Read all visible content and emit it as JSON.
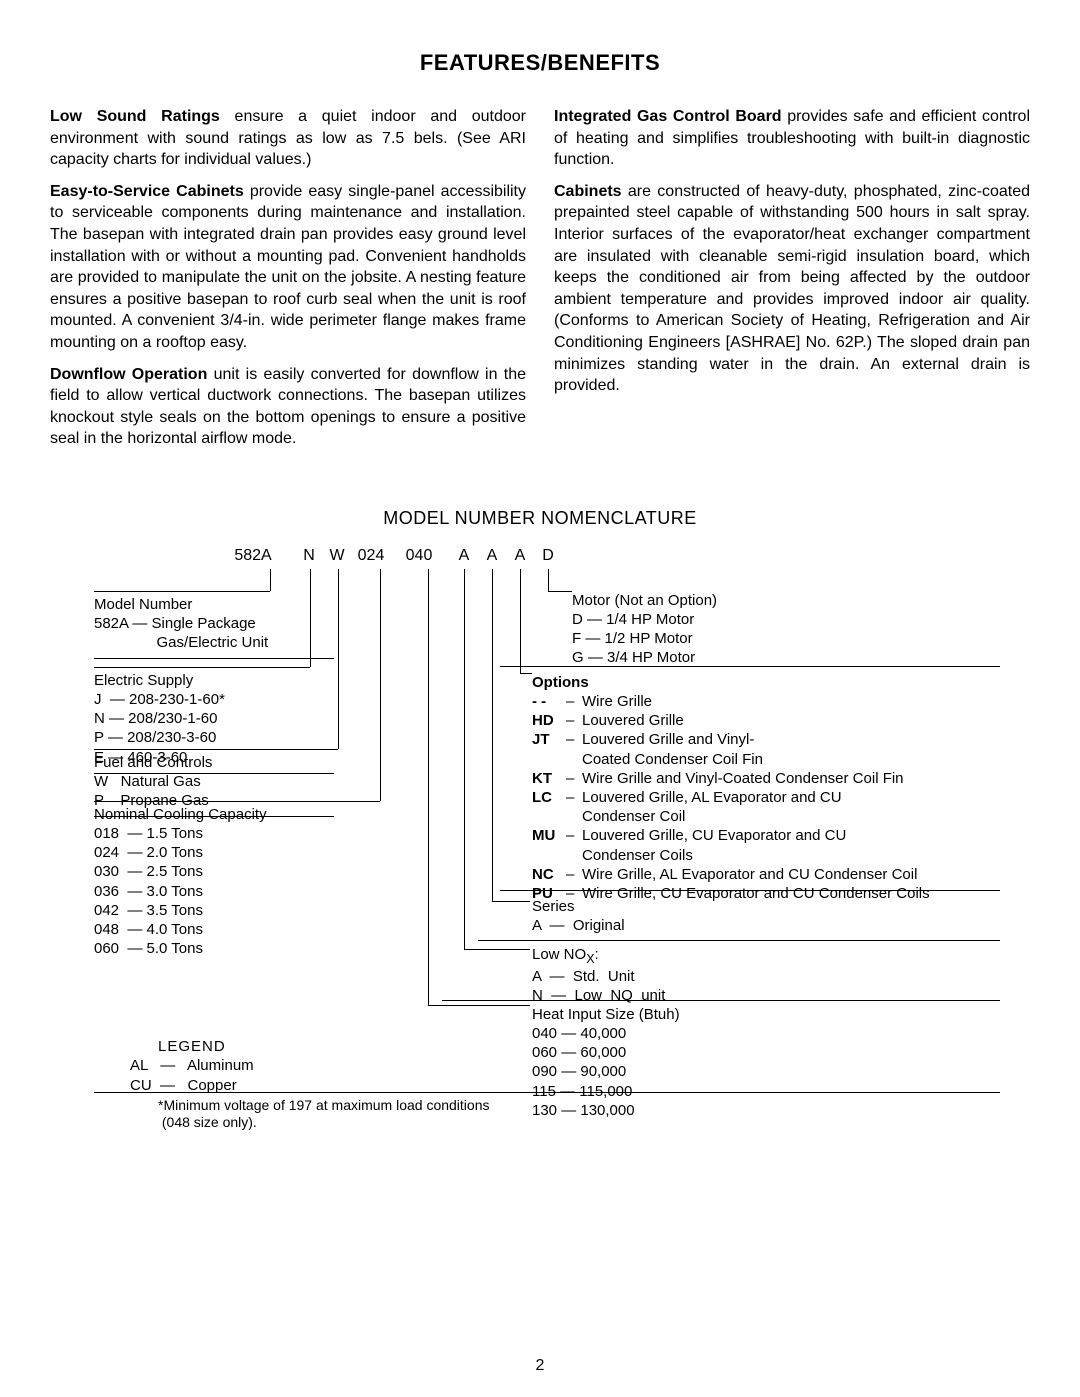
{
  "title": "FEATURES/BENEFITS",
  "paragraphs_left": [
    {
      "lead": "Low Sound Ratings",
      "text": " ensure a quiet indoor and outdoor environment with sound ratings as low as 7.5 bels. (See ARI capacity charts for individual values.)"
    },
    {
      "lead": "Easy-to-Service Cabinets",
      "text": " provide easy single-panel accessibility to serviceable components during maintenance and installation. The basepan with integrated drain pan provides easy ground level installation with or without a mounting pad. Convenient handholds are provided to manipulate the unit on the jobsite. A nesting feature ensures a positive basepan to roof curb seal when the unit is roof mounted. A convenient 3/4-in. wide perimeter flange makes frame mounting on a rooftop easy."
    },
    {
      "lead": "Downflow Operation",
      "text": " unit is easily converted for downflow in the field to allow vertical ductwork connections. The basepan utilizes knockout style seals on the bottom openings to ensure a positive seal in the horizontal airflow mode."
    }
  ],
  "paragraphs_right": [
    {
      "lead": "Integrated Gas Control Board",
      "text": " provides safe and efficient control of heating and simplifies troubleshooting with built-in diagnostic function."
    },
    {
      "lead": "Cabinets",
      "text": " are constructed of heavy-duty, phosphated, zinc-coated prepainted steel capable of withstanding 500 hours in salt spray. Interior surfaces of the evaporator/heat exchanger compartment are insulated with cleanable semi-rigid insulation board, which keeps the conditioned air from being affected by the outdoor ambient temperature and provides improved indoor air quality. (Conforms to American Society of Heating, Refrigeration and Air Conditioning Engineers [ASHRAE] No. 62P.) The sloped drain pan minimizes standing water in the drain. An external drain is provided."
    }
  ],
  "nomen_title": "MODEL NUMBER NOMENCLATURE",
  "codes": [
    "582A",
    "N",
    "W",
    "024",
    "040",
    "A",
    "A",
    "A",
    "D"
  ],
  "left_groups": [
    {
      "title": "Model Number",
      "lines": [
        "582A — Single Package",
        "               Gas/Electric Unit"
      ]
    },
    {
      "title": "Electric Supply",
      "lines": [
        "J  — 208-230-1-60*",
        "N — 208/230-1-60",
        "P — 208/230-3-60",
        "E — 460-3-60"
      ]
    },
    {
      "title": "Fuel and Controls",
      "lines": [
        "W   Natural Gas",
        "P    Propane Gas"
      ]
    },
    {
      "title": "Nominal Cooling Capacity",
      "lines": [
        "018  — 1.5 Tons",
        "024  — 2.0 Tons",
        "030  — 2.5 Tons",
        "036  — 3.0 Tons",
        "042  — 3.5 Tons",
        "048  — 4.0 Tons",
        "060  — 5.0 Tons"
      ]
    }
  ],
  "motor": {
    "title": "Motor (Not an Option)",
    "lines": [
      "D — 1/4 HP Motor",
      "F — 1/2 HP Motor",
      "G — 3/4 HP Motor"
    ]
  },
  "options_title": "Options",
  "options": [
    {
      "code": "- -",
      "text": "Wire Grille"
    },
    {
      "code": "HD",
      "text": "Louvered Grille"
    },
    {
      "code": "JT",
      "text": "Louvered Grille and Vinyl-Coated Condenser Coil Fin",
      "wrap": true
    },
    {
      "code": "KT",
      "text": "Wire Grille and Vinyl-Coated Condenser Coil Fin"
    },
    {
      "code": "LC",
      "text": "Louvered Grille, AL Evaporator and CU Condenser Coil",
      "wrap": true
    },
    {
      "code": "MU",
      "text": "Louvered Grille, CU Evaporator and CU Condenser Coils",
      "wrap": true
    },
    {
      "code": "NC",
      "text": "Wire Grille, AL Evaporator and CU Condenser Coil"
    },
    {
      "code": "PU",
      "text": "Wire Grille, CU Evaporator and CU Condenser Coils"
    }
  ],
  "series": {
    "title": "Series",
    "lines": [
      "A  —  Original"
    ]
  },
  "lownox": {
    "title_html": "Low NO<sub>X</sub>:",
    "lines": [
      "A  —  Std.  Unit",
      "N  —  Low  NQ  unit"
    ]
  },
  "heat": {
    "title": "Heat Input Size   (Btuh)",
    "lines": [
      "040 — 40,000",
      "060 — 60,000",
      "090 — 90,000",
      "115 — 115,000",
      "130 — 130,000"
    ]
  },
  "legend_title": "LEGEND",
  "legend_lines": [
    "AL   —   Aluminum",
    "CU  —   Copper"
  ],
  "footnote": "*Minimum voltage of 197 at maximum load conditions\n (048 size only).",
  "page_number": "2"
}
